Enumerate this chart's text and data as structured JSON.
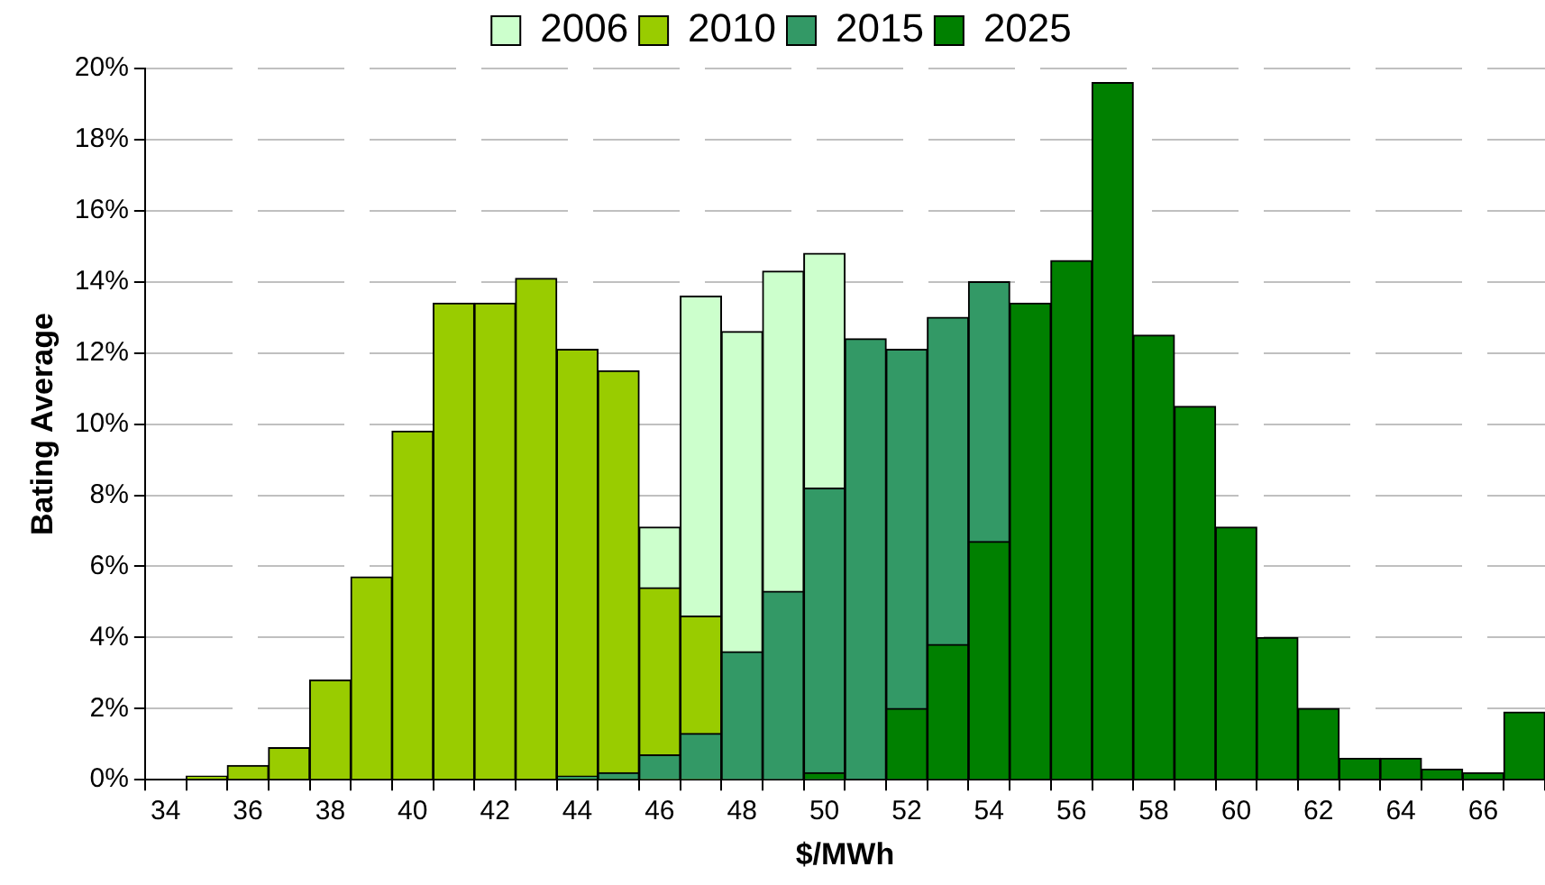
{
  "chart_data": {
    "type": "bar",
    "xlabel": "$/MWh",
    "ylabel": "Bating Average",
    "categories": [
      "34",
      null,
      "36",
      null,
      "38",
      null,
      "40",
      null,
      "42",
      null,
      "44",
      null,
      "46",
      null,
      "48",
      null,
      "50",
      null,
      "52",
      null,
      "54",
      null,
      "56",
      null,
      "58",
      null,
      "60",
      null,
      "62",
      null,
      "64",
      null,
      "66",
      null
    ],
    "series": [
      {
        "name": "2006",
        "color": "#ccffcc",
        "values": [
          null,
          null,
          null,
          null,
          null,
          null,
          null,
          null,
          null,
          null,
          null,
          null,
          7.1,
          13.6,
          12.6,
          14.3,
          14.8,
          null,
          null,
          null,
          null,
          null,
          null,
          null,
          null,
          null,
          null,
          null,
          null,
          null,
          null,
          null,
          null,
          null
        ]
      },
      {
        "name": "2010",
        "color": "#99cc00",
        "values": [
          0,
          0.1,
          0.4,
          0.9,
          2.8,
          5.7,
          9.8,
          13.4,
          13.4,
          14.1,
          12.1,
          11.5,
          5.4,
          4.6,
          null,
          null,
          null,
          null,
          null,
          null,
          null,
          null,
          null,
          null,
          null,
          null,
          null,
          null,
          null,
          null,
          null,
          null,
          null,
          null
        ]
      },
      {
        "name": "2015",
        "color": "#339966",
        "values": [
          null,
          null,
          null,
          null,
          null,
          null,
          null,
          null,
          null,
          null,
          0.1,
          0.2,
          0.7,
          1.3,
          3.6,
          5.3,
          8.2,
          12.4,
          12.1,
          13.0,
          14.0,
          null,
          null,
          null,
          null,
          null,
          null,
          null,
          null,
          null,
          null,
          null,
          null,
          null
        ]
      },
      {
        "name": "2025",
        "color": "#008000",
        "values": [
          null,
          null,
          null,
          null,
          null,
          null,
          null,
          null,
          null,
          null,
          null,
          null,
          null,
          null,
          null,
          null,
          0.2,
          0,
          2.0,
          3.8,
          6.7,
          13.4,
          14.6,
          19.6,
          12.5,
          10.5,
          7.1,
          4.0,
          2.0,
          0.6,
          0.6,
          0.3,
          0.2,
          1.9
        ]
      }
    ],
    "ylim": [
      0,
      20
    ],
    "yticks": [
      {
        "value": 0,
        "label": "0%"
      },
      {
        "value": 2,
        "label": "2%"
      },
      {
        "value": 4,
        "label": "4%"
      },
      {
        "value": 6,
        "label": "6%"
      },
      {
        "value": 8,
        "label": "8%"
      },
      {
        "value": 10,
        "label": "10%"
      },
      {
        "value": 12,
        "label": "12%"
      },
      {
        "value": 14,
        "label": "14%"
      },
      {
        "value": 16,
        "label": "16%"
      },
      {
        "value": 18,
        "label": "18%"
      },
      {
        "value": 20,
        "label": "20%"
      }
    ],
    "grid": "y",
    "legend": "top"
  }
}
